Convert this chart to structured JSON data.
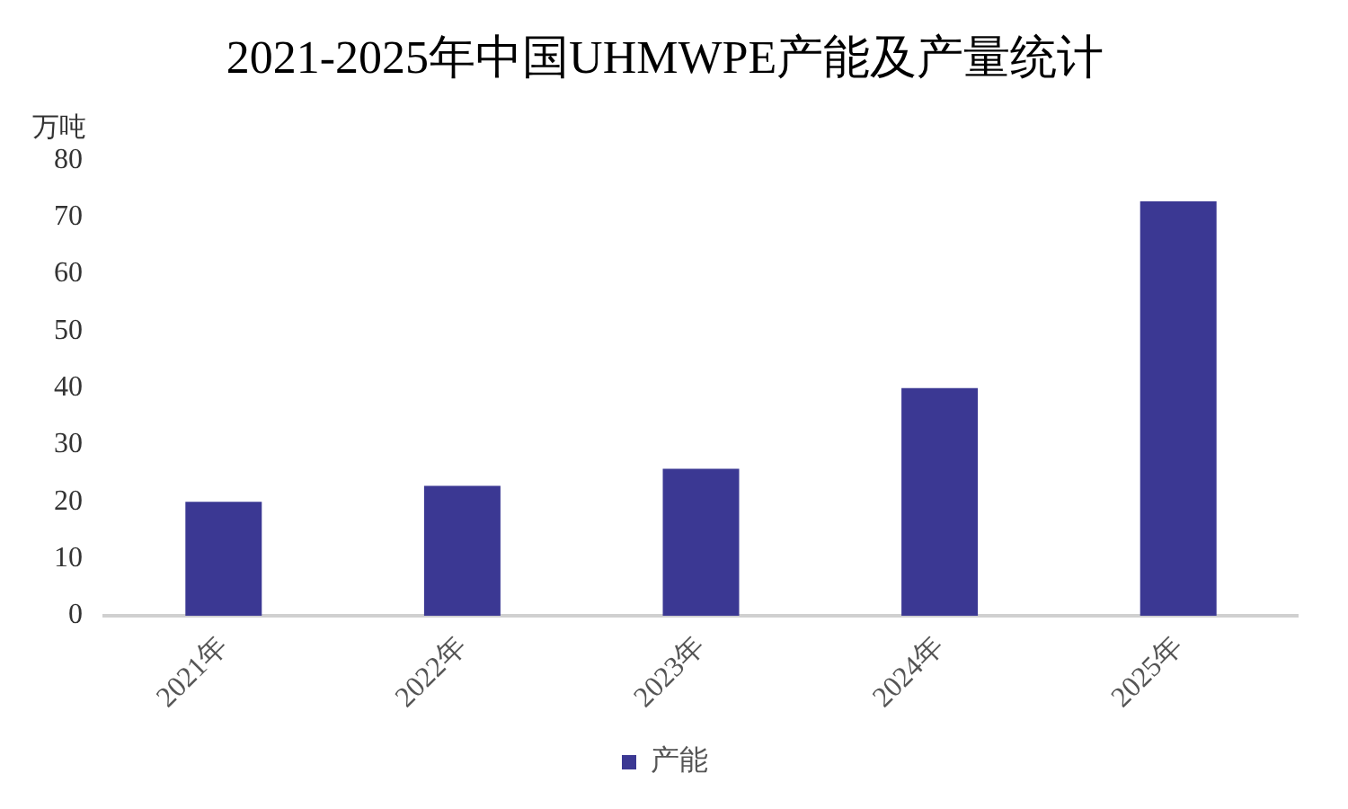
{
  "chart_data": {
    "type": "bar",
    "title": "2021-2025年中国UHMWPE产能及产量统计",
    "ylabel": "万吨",
    "categories": [
      "2021年",
      "2022年",
      "2023年",
      "2024年",
      "2025年"
    ],
    "series": [
      {
        "name": "产能",
        "color": "#3b3893",
        "values": [
          20,
          22.8,
          25.8,
          40,
          72.8
        ]
      }
    ],
    "ylim": [
      0,
      80
    ],
    "yticks": [
      0,
      10,
      20,
      30,
      40,
      50,
      60,
      70,
      80
    ],
    "grid": false,
    "legend": "bottom"
  }
}
